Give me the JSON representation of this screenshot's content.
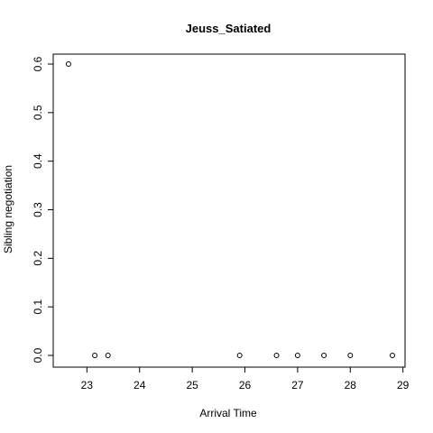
{
  "chart_data": {
    "type": "scatter",
    "title": "Jeuss_Satiated",
    "xlabel": "Arrival Time",
    "ylabel": "Sibling negotiation",
    "xlim": [
      22.6,
      28.8
    ],
    "ylim": [
      0.0,
      0.6
    ],
    "x_ticks": [
      23,
      24,
      25,
      26,
      27,
      28,
      29
    ],
    "y_ticks": [
      0.0,
      0.1,
      0.2,
      0.3,
      0.4,
      0.5,
      0.6
    ],
    "y_tick_labels": [
      "0.0",
      "0.1",
      "0.2",
      "0.3",
      "0.4",
      "0.5",
      "0.6"
    ],
    "points": [
      {
        "x": 22.65,
        "y": 0.6
      },
      {
        "x": 23.15,
        "y": 0.0
      },
      {
        "x": 23.4,
        "y": 0.0
      },
      {
        "x": 25.9,
        "y": 0.0
      },
      {
        "x": 26.6,
        "y": 0.0
      },
      {
        "x": 27.0,
        "y": 0.0
      },
      {
        "x": 27.5,
        "y": 0.0
      },
      {
        "x": 28.0,
        "y": 0.0
      },
      {
        "x": 28.8,
        "y": 0.0
      }
    ],
    "grid": false,
    "legend": "none"
  }
}
